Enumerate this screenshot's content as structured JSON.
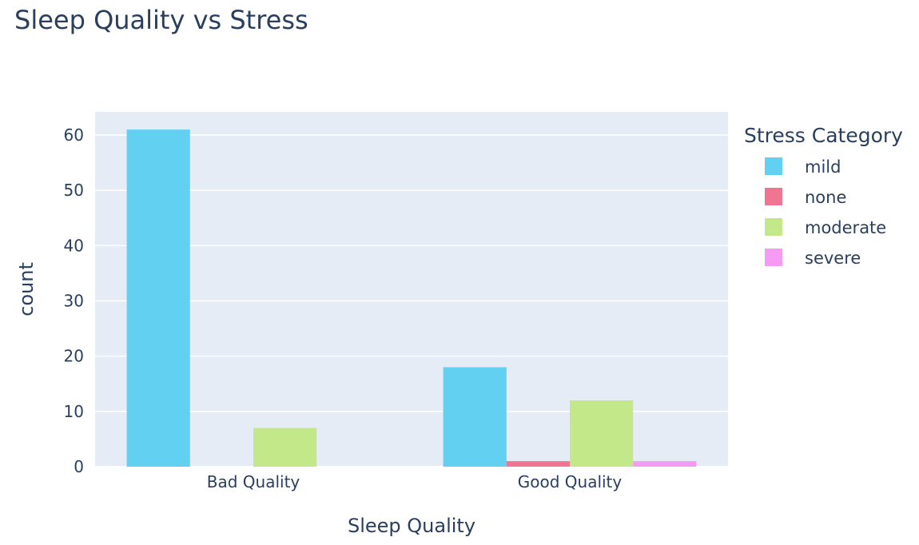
{
  "chart_data": {
    "type": "bar",
    "title": "Sleep Quality vs Stress",
    "xlabel": "Sleep Quality",
    "ylabel": "count",
    "categories": [
      "Bad Quality",
      "Good Quality"
    ],
    "series": [
      {
        "name": "mild",
        "values": [
          61,
          18
        ],
        "color": "#62d0f0"
      },
      {
        "name": "none",
        "values": [
          0,
          1
        ],
        "color": "#ef7590"
      },
      {
        "name": "moderate",
        "values": [
          7,
          12
        ],
        "color": "#c2e88a"
      },
      {
        "name": "severe",
        "values": [
          0,
          1
        ],
        "color": "#f59bf4"
      }
    ],
    "ylim": [
      0,
      64.2
    ],
    "yticks": [
      0,
      10,
      20,
      30,
      40,
      50,
      60
    ],
    "grid": true,
    "legend": {
      "title": "Stress Category",
      "placement": "right"
    },
    "plot_background": "#e5ecf6"
  }
}
